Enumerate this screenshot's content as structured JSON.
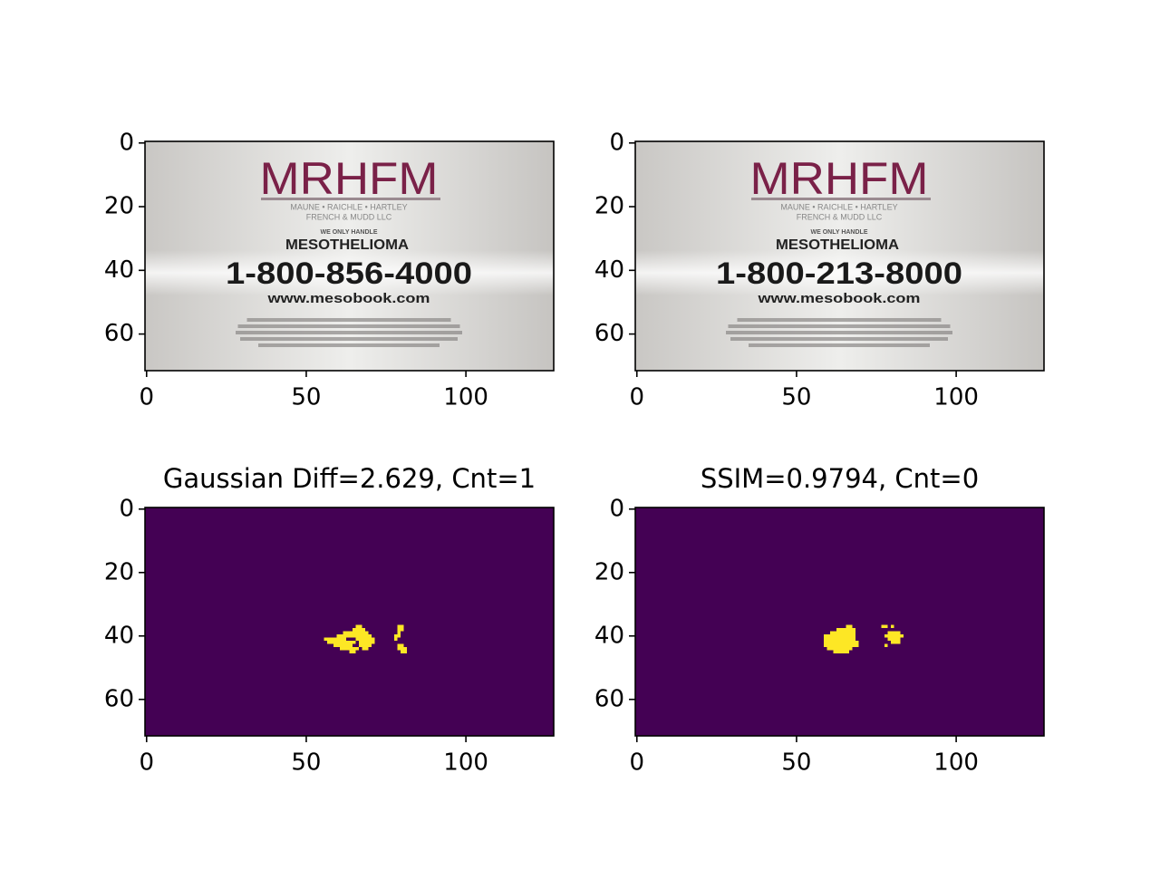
{
  "chart_data": [
    {
      "type": "image",
      "image_texts": {
        "logo": "MRHFM",
        "firm": "MAUNE • RAICHLE • HARTLEY",
        "firm2": "FRENCH & MUDD LLC",
        "tag": "WE ONLY HANDLE",
        "subject": "MESOTHELIOMA",
        "phone": "1-800-856-4000",
        "url": "www.mesobook.com"
      },
      "xlim": [
        -0.5,
        127.5
      ],
      "ylim": [
        71.5,
        -0.5
      ],
      "xticks": [
        0,
        50,
        100
      ],
      "yticks": [
        0,
        20,
        40,
        60
      ]
    },
    {
      "type": "image",
      "image_texts": {
        "logo": "MRHFM",
        "firm": "MAUNE • RAICHLE • HARTLEY",
        "firm2": "FRENCH & MUDD LLC",
        "tag": "WE ONLY HANDLE",
        "subject": "MESOTHELIOMA",
        "phone": "1-800-213-8000",
        "url": "www.mesobook.com"
      },
      "xlim": [
        -0.5,
        127.5
      ],
      "ylim": [
        71.5,
        -0.5
      ],
      "xticks": [
        0,
        50,
        100
      ],
      "yticks": [
        0,
        20,
        40,
        60
      ]
    },
    {
      "type": "mask",
      "title": "Gaussian Diff=2.629, Cnt=1",
      "background": "#440154",
      "color": "#fde725",
      "runs": [
        [
          37,
          66,
          67
        ],
        [
          37,
          79,
          80
        ],
        [
          38,
          65,
          68
        ],
        [
          38,
          79,
          80
        ],
        [
          39,
          62,
          63
        ],
        [
          39,
          64,
          69
        ],
        [
          39,
          79,
          79
        ],
        [
          40,
          60,
          63
        ],
        [
          40,
          64,
          66
        ],
        [
          40,
          67,
          70
        ],
        [
          40,
          78,
          79
        ],
        [
          41,
          56,
          62
        ],
        [
          41,
          66,
          71
        ],
        [
          41,
          78,
          78
        ],
        [
          42,
          57,
          65
        ],
        [
          42,
          67,
          71
        ],
        [
          43,
          59,
          64
        ],
        [
          43,
          67,
          70
        ],
        [
          43,
          79,
          80
        ],
        [
          44,
          61,
          66
        ],
        [
          44,
          68,
          69
        ],
        [
          44,
          79,
          81
        ],
        [
          45,
          64,
          65
        ],
        [
          45,
          80,
          81
        ]
      ],
      "xlim": [
        -0.5,
        127.5
      ],
      "ylim": [
        71.5,
        -0.5
      ],
      "xticks": [
        0,
        50,
        100
      ],
      "yticks": [
        0,
        20,
        40,
        60
      ]
    },
    {
      "type": "mask",
      "title": "SSIM=0.9794, Cnt=0",
      "background": "#440154",
      "color": "#fde725",
      "runs": [
        [
          37,
          66,
          67
        ],
        [
          37,
          77,
          78
        ],
        [
          37,
          80,
          80
        ],
        [
          38,
          63,
          68
        ],
        [
          39,
          61,
          68
        ],
        [
          39,
          79,
          82
        ],
        [
          40,
          59,
          68
        ],
        [
          40,
          78,
          83
        ],
        [
          41,
          59,
          68
        ],
        [
          41,
          79,
          82
        ],
        [
          42,
          59,
          69
        ],
        [
          42,
          80,
          82
        ],
        [
          43,
          59,
          69
        ],
        [
          43,
          78,
          78
        ],
        [
          44,
          60,
          67
        ],
        [
          45,
          62,
          66
        ]
      ],
      "xlim": [
        -0.5,
        127.5
      ],
      "ylim": [
        71.5,
        -0.5
      ],
      "xticks": [
        0,
        50,
        100
      ],
      "yticks": [
        0,
        20,
        40,
        60
      ]
    }
  ]
}
